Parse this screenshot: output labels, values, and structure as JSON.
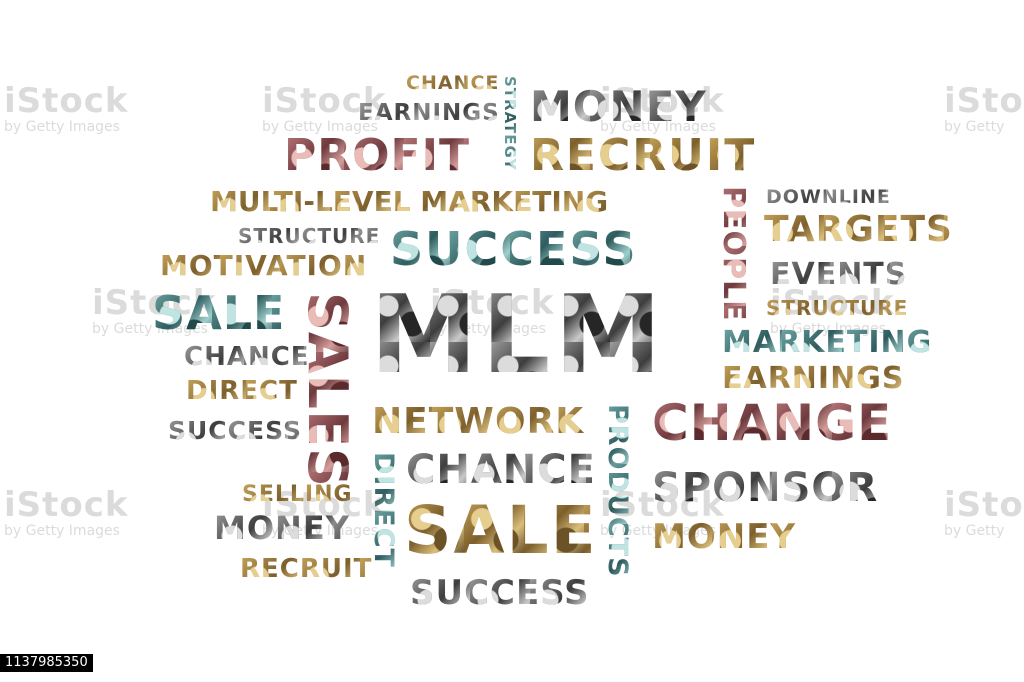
{
  "words": {
    "chance_1": "CHANCE",
    "earnings_1": "EARNINGS",
    "strategy": "STRATEGY",
    "money_1": "MONEY",
    "profit": "PROFIT",
    "recruit_1": "RECRUIT",
    "multi_level_marketing": "MULTI-LEVEL MARKETING",
    "people": "PEOPLE",
    "downline": "DOWNLINE",
    "structure_1": "STRUCTURE",
    "success_1": "SUCCESS",
    "targets": "TARGETS",
    "motivation": "MOTIVATION",
    "events": "EVENTS",
    "sale_1": "SALE",
    "sales": "SALES",
    "mlm": "MLM",
    "structure_2": "STRUCTURE",
    "marketing": "MARKETING",
    "chance_2": "CHANCE",
    "earnings_2": "EARNINGS",
    "direct_1": "DIRECT",
    "success_2": "SUCCESS",
    "network": "NETWORK",
    "products": "PRODUCTS",
    "change": "CHANGE",
    "chance_3": "CHANCE",
    "direct_2": "DIRECT",
    "selling": "SELLING",
    "sponsor": "SPONSOR",
    "money_2": "MONEY",
    "sale_2": "SALE",
    "money_3": "MONEY",
    "recruit_2": "RECRUIT",
    "success_3": "SUCCESS"
  },
  "watermark": {
    "brand": "iStock",
    "credit": "by Getty Images",
    "credit_short": "by Getty"
  },
  "image_id": "1137985350"
}
